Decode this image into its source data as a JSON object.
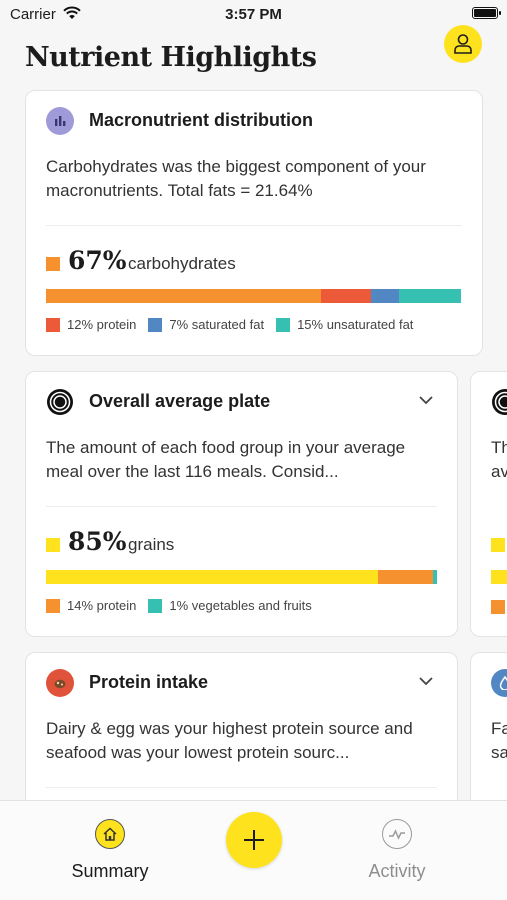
{
  "status_bar": {
    "carrier": "Carrier",
    "time": "3:57 PM"
  },
  "header": {
    "title": "Nutrient Highlights"
  },
  "colors": {
    "orange": "#f6912f",
    "red": "#ed5a3a",
    "blue": "#5187c3",
    "teal": "#36c0b2",
    "yellow": "#fde21d",
    "purple": "#9f9bd8"
  },
  "cards": {
    "macro": {
      "title": "Macronutrient distribution",
      "description": "Carbohydrates was the biggest component of your macronutrients. Total fats = 21.64%",
      "highlight_value": "67%",
      "highlight_label": "carbohydrates",
      "segments": [
        {
          "name": "carbohydrates",
          "percent": 67,
          "color": "#f6912f"
        },
        {
          "name": "protein",
          "percent": 12,
          "color": "#ed5a3a"
        },
        {
          "name": "saturated fat",
          "percent": 7,
          "color": "#5187c3"
        },
        {
          "name": "unsaturated fat",
          "percent": 15,
          "color": "#36c0b2"
        }
      ],
      "legend": [
        "12% protein",
        "7% saturated fat",
        "15% unsaturated fat"
      ]
    },
    "plate": {
      "title": "Overall average plate",
      "description": "The amount of each food group in your average meal over the last 116 meals. Consid...",
      "highlight_value": "85%",
      "highlight_label": "grains",
      "segments": [
        {
          "name": "grains",
          "percent": 85,
          "color": "#fde21d"
        },
        {
          "name": "protein",
          "percent": 14,
          "color": "#f6912f"
        },
        {
          "name": "vegetables and fruits",
          "percent": 1,
          "color": "#36c0b2"
        }
      ],
      "legend": [
        "14% protein",
        "1% vegetables and fruits"
      ]
    },
    "protein": {
      "title": "Protein intake",
      "description": "Dairy & egg was your highest protein source and seafood was your lowest protein sourc..."
    },
    "peek_1": {
      "text": "Th av"
    },
    "peek_2": {
      "text": "Fa sa"
    }
  },
  "tab_bar": {
    "summary_label": "Summary",
    "activity_label": "Activity"
  }
}
